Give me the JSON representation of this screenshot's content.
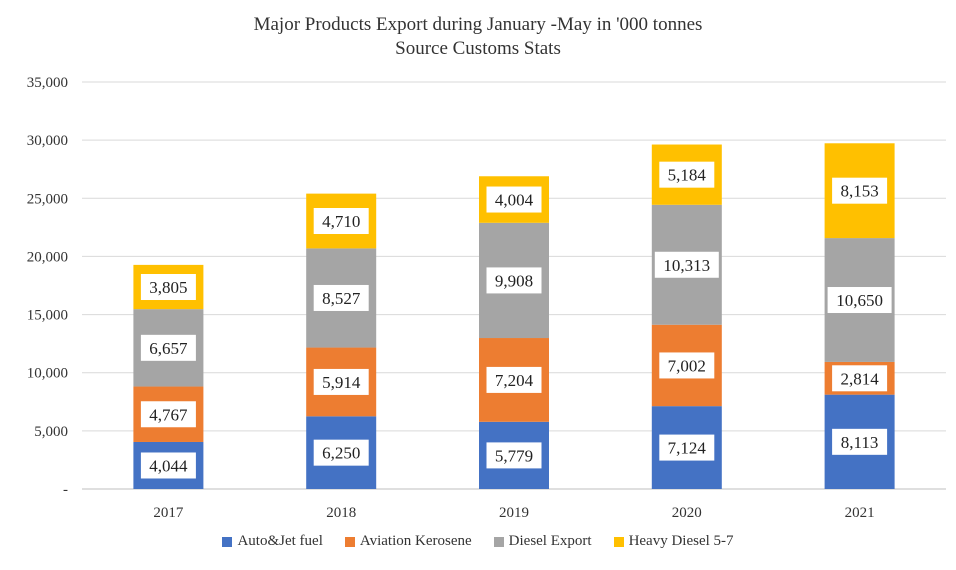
{
  "chart_data": {
    "type": "bar",
    "stacked": true,
    "title": "Major Products Export during January -May in '000 tonnes",
    "subtitle": "Source Customs Stats",
    "categories": [
      "2017",
      "2018",
      "2019",
      "2020",
      "2021"
    ],
    "series": [
      {
        "name": "Auto&Jet fuel",
        "color": "#4472C4",
        "values": [
          4044,
          6250,
          5779,
          7124,
          8113
        ],
        "labels": [
          "4,044",
          "6,250",
          "5,779",
          "7,124",
          "8,113"
        ]
      },
      {
        "name": "Aviation Kerosene",
        "color": "#ED7D31",
        "values": [
          4767,
          5914,
          7204,
          7002,
          2814
        ],
        "labels": [
          "4,767",
          "5,914",
          "7,204",
          "7,002",
          "2,814"
        ]
      },
      {
        "name": "Diesel Export",
        "color": "#A5A5A5",
        "values": [
          6657,
          8527,
          9908,
          10313,
          10650
        ],
        "labels": [
          "6,657",
          "8,527",
          "9,908",
          "10,313",
          "10,650"
        ]
      },
      {
        "name": "Heavy Diesel 5-7",
        "color": "#FFC000",
        "values": [
          3805,
          4710,
          4004,
          5184,
          8153
        ],
        "labels": [
          "3,805",
          "4,710",
          "4,004",
          "5,184",
          "8,153"
        ]
      }
    ],
    "ylim": [
      0,
      35000
    ],
    "yticks": [
      0,
      5000,
      10000,
      15000,
      20000,
      25000,
      30000,
      35000
    ],
    "ytick_labels": [
      "-",
      "5,000",
      "10,000",
      "15,000",
      "20,000",
      "25,000",
      "30,000",
      "35,000"
    ],
    "grid": true,
    "legend_position": "bottom"
  }
}
